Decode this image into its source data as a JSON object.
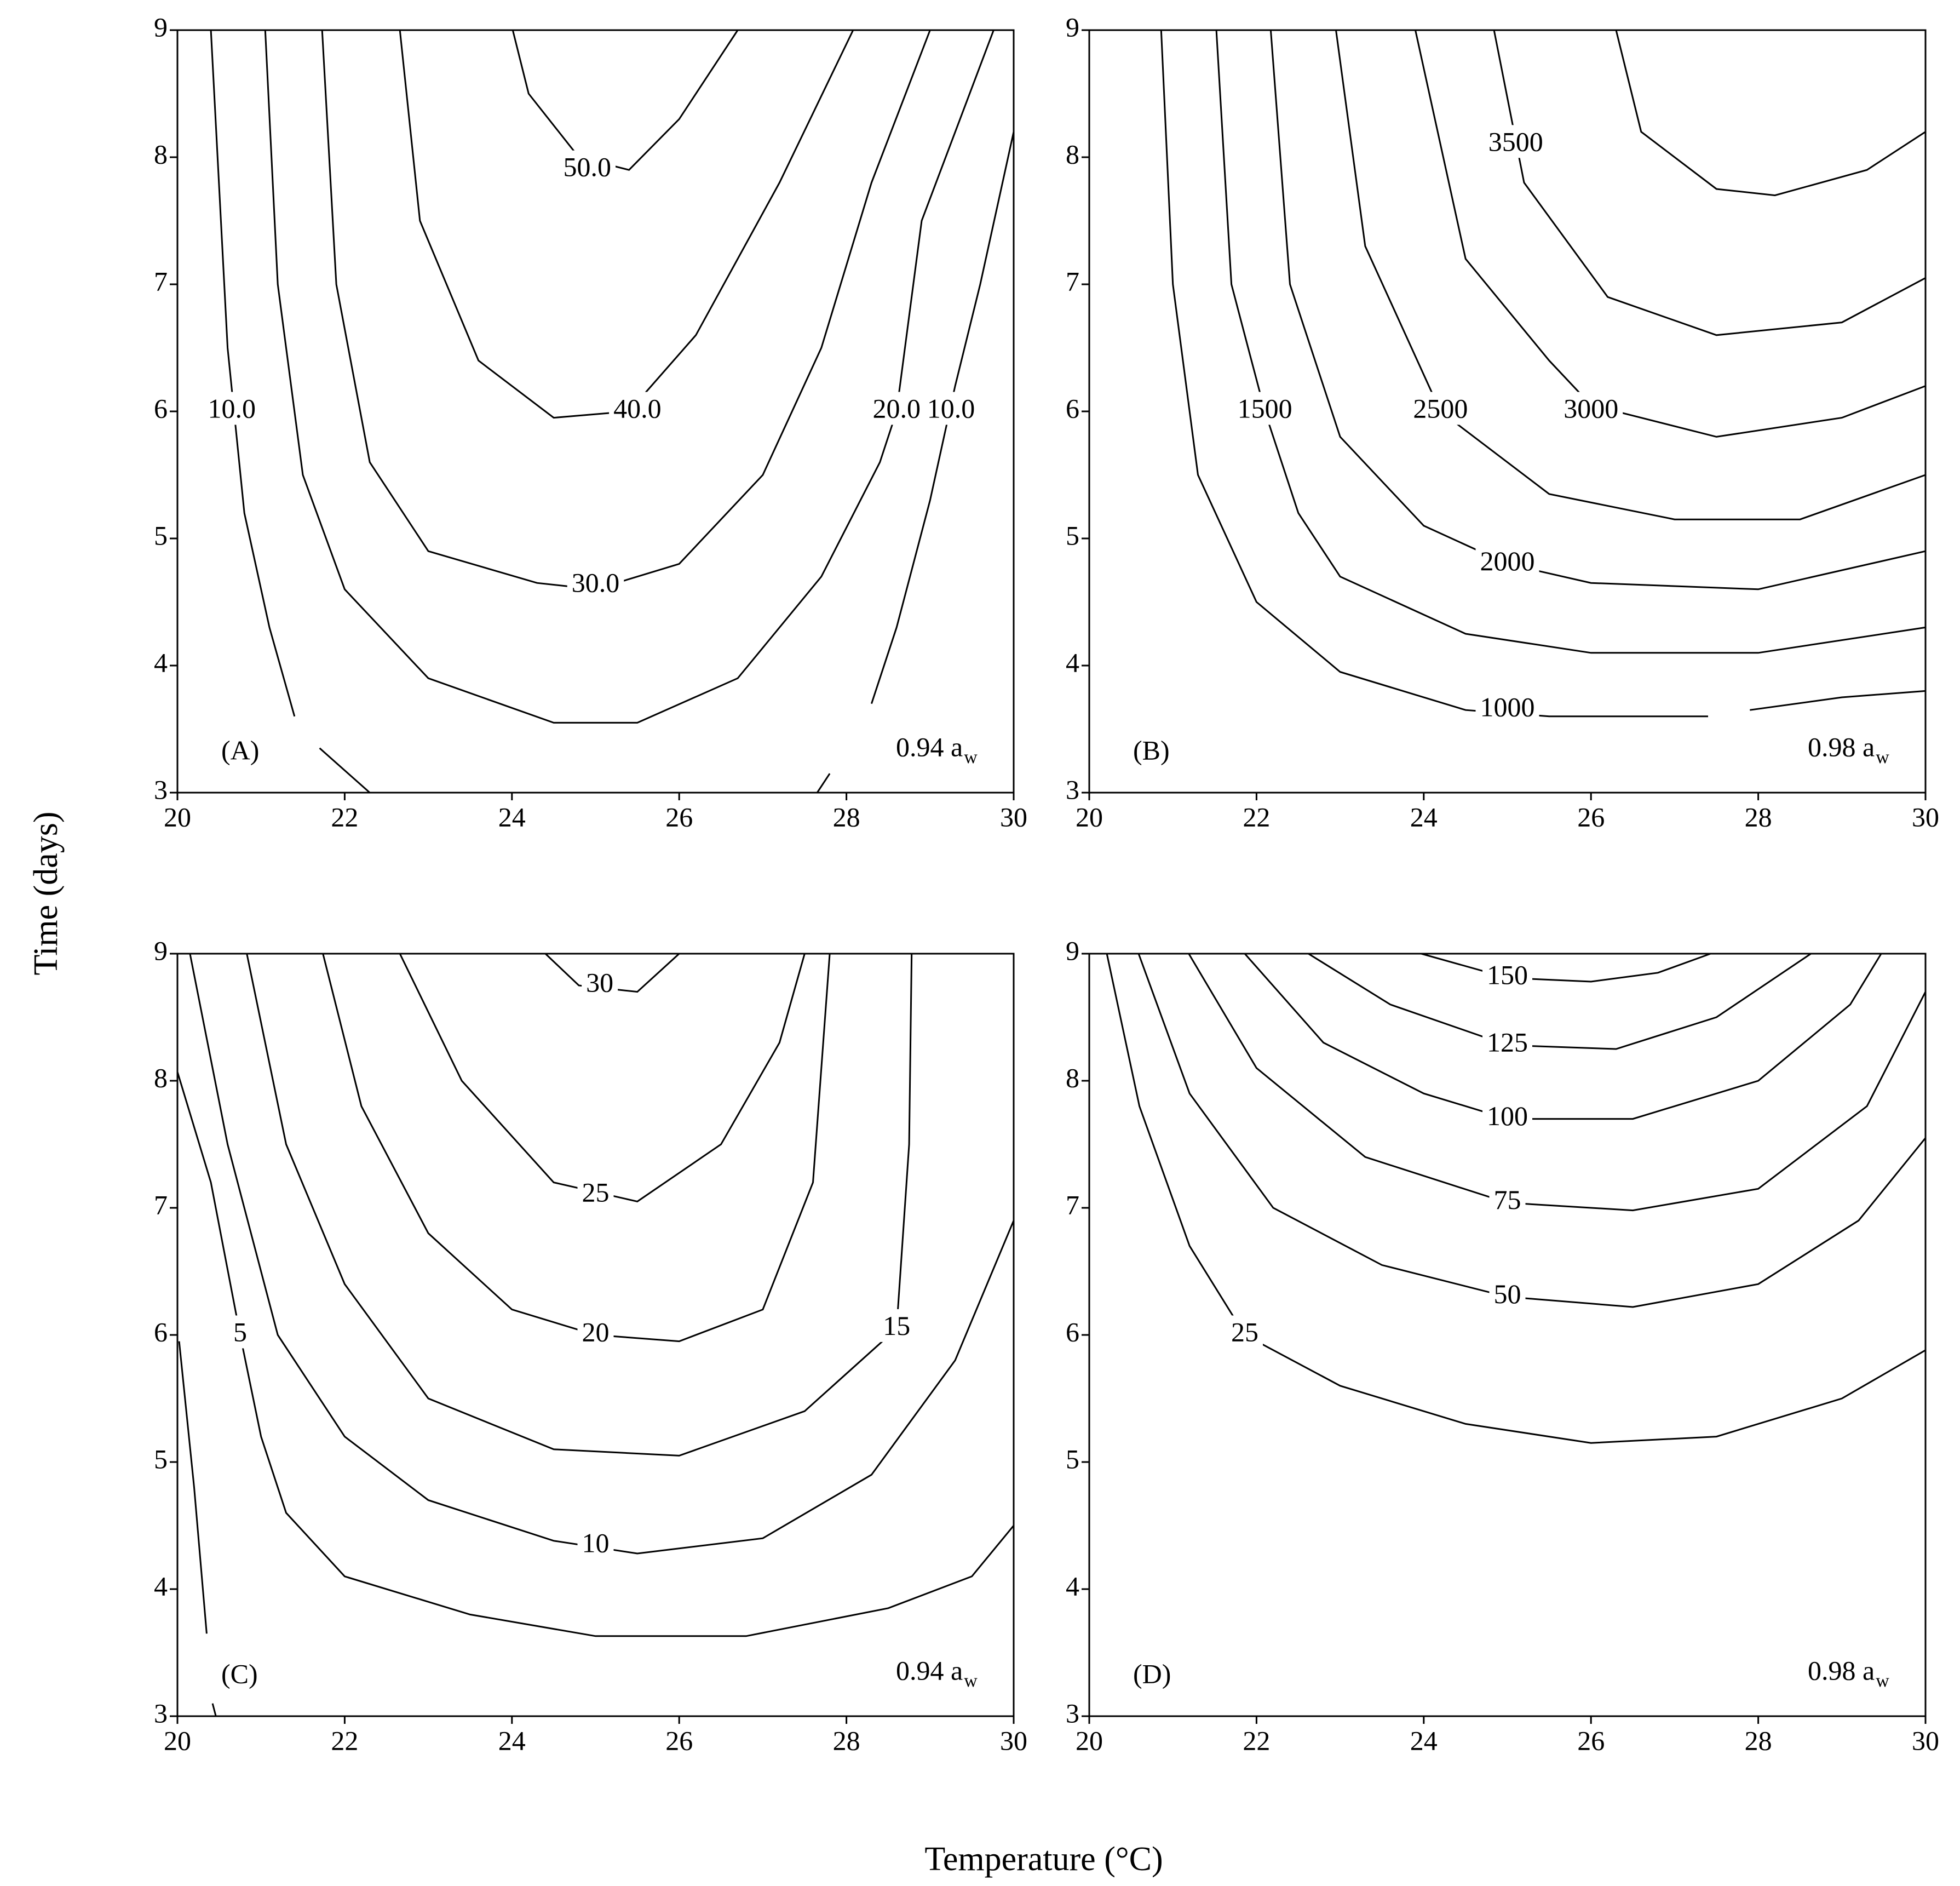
{
  "xlabel": "Temperature (°C)",
  "ylabel": "Time (days)",
  "chart_data": [
    {
      "type": "contour",
      "panel_label": "(A)",
      "aw_text": "0.94 a",
      "aw_subscript": "w",
      "xlim": [
        20,
        30
      ],
      "ylim": [
        3,
        9
      ],
      "xticks": [
        20,
        22,
        24,
        26,
        28,
        30
      ],
      "yticks": [
        3,
        4,
        5,
        6,
        7,
        8,
        9
      ],
      "series": [
        {
          "name": "10.0",
          "x": [
            20.4,
            20.6,
            20.8,
            21.1,
            21.4,
            null,
            21.7,
            22.3,
            null,
            30,
            29.6,
            29.3,
            29.0,
            28.6,
            28.3,
            null,
            27.8,
            27.65
          ],
          "y": [
            9,
            6.5,
            5.2,
            4.3,
            3.6,
            null,
            3.35,
            3,
            null,
            8.2,
            7,
            6.2,
            5.3,
            4.3,
            3.7,
            null,
            3.15,
            3
          ],
          "labels": [
            {
              "x": 20.65,
              "y": 6.0
            },
            {
              "x": 29.25,
              "y": 6.0
            }
          ]
        },
        {
          "name": "20.0",
          "x": [
            21.05,
            21.2,
            21.5,
            22.0,
            23.0,
            24.5,
            25.5,
            26.7,
            27.7,
            28.4,
            28.6,
            28.9,
            29.76
          ],
          "y": [
            9,
            7,
            5.5,
            4.6,
            3.9,
            3.55,
            3.55,
            3.9,
            4.7,
            5.6,
            6.0,
            7.5,
            9
          ],
          "labels": [
            {
              "x": 28.6,
              "y": 6.0
            }
          ]
        },
        {
          "name": "30.0",
          "x": [
            21.73,
            21.9,
            22.3,
            23.0,
            24.3,
            25.0,
            26.0,
            27.0,
            27.7,
            28.3,
            29.0
          ],
          "y": [
            9,
            7,
            5.6,
            4.9,
            4.65,
            4.6,
            4.8,
            5.5,
            6.5,
            7.8,
            9
          ],
          "labels": [
            {
              "x": 25.0,
              "y": 4.63
            }
          ]
        },
        {
          "name": "40.0",
          "x": [
            22.66,
            22.9,
            23.6,
            24.5,
            25.4,
            26.2,
            27.2,
            28.08
          ],
          "y": [
            9,
            7.5,
            6.4,
            5.95,
            6.0,
            6.6,
            7.8,
            9
          ],
          "labels": [
            {
              "x": 25.5,
              "y": 6.0
            }
          ]
        },
        {
          "name": "50.0",
          "x": [
            24.01,
            24.2,
            24.8,
            25.4,
            26.0,
            26.7
          ],
          "y": [
            9,
            8.5,
            8.0,
            7.9,
            8.3,
            9
          ],
          "labels": [
            {
              "x": 24.9,
              "y": 7.9
            }
          ]
        }
      ]
    },
    {
      "type": "contour",
      "panel_label": "(B)",
      "aw_text": "0.98 a",
      "aw_subscript": "w",
      "xlim": [
        20,
        30
      ],
      "ylim": [
        3,
        9
      ],
      "xticks": [
        20,
        22,
        24,
        26,
        28,
        30
      ],
      "yticks": [
        3,
        4,
        5,
        6,
        7,
        8,
        9
      ],
      "series": [
        {
          "name": "1000",
          "x": [
            20.86,
            21.0,
            21.3,
            22.0,
            23.0,
            24.5,
            25.5,
            27.4,
            null,
            27.9,
            29,
            30
          ],
          "y": [
            9,
            7,
            5.5,
            4.5,
            3.95,
            3.65,
            3.6,
            3.6,
            null,
            3.65,
            3.75,
            3.8
          ],
          "labels": [
            {
              "x": 25.0,
              "y": 3.65
            }
          ]
        },
        {
          "name": "1500",
          "x": [
            21.52,
            21.7,
            21.9,
            22.1,
            22.5,
            23.0,
            24.5,
            26,
            28,
            30
          ],
          "y": [
            9,
            7,
            6.5,
            6.0,
            5.2,
            4.7,
            4.25,
            4.1,
            4.1,
            4.3
          ],
          "labels": [
            {
              "x": 22.1,
              "y": 6.0
            }
          ]
        },
        {
          "name": "2000",
          "x": [
            22.17,
            22.4,
            23,
            24,
            25,
            26,
            28,
            30
          ],
          "y": [
            9,
            7,
            5.8,
            5.1,
            4.8,
            4.65,
            4.6,
            4.9
          ],
          "labels": [
            {
              "x": 25.0,
              "y": 4.8
            }
          ]
        },
        {
          "name": "2500",
          "x": [
            22.95,
            23.3,
            24.2,
            25.5,
            27,
            28.5,
            30
          ],
          "y": [
            9,
            7.3,
            6.0,
            5.35,
            5.15,
            5.15,
            5.5
          ],
          "labels": [
            {
              "x": 24.2,
              "y": 6.0
            }
          ]
        },
        {
          "name": "3000",
          "x": [
            23.9,
            24.5,
            25.5,
            26,
            27.5,
            29,
            30
          ],
          "y": [
            9,
            7.2,
            6.4,
            6.05,
            5.8,
            5.95,
            6.2
          ],
          "labels": [
            {
              "x": 26.0,
              "y": 6.0
            }
          ]
        },
        {
          "name": "3500",
          "x": [
            24.84,
            25.2,
            26.2,
            27.5,
            29,
            30
          ],
          "y": [
            9,
            7.8,
            6.9,
            6.6,
            6.7,
            7.05
          ],
          "labels": [
            {
              "x": 25.1,
              "y": 8.1
            }
          ]
        },
        {
          "x": [
            26.3,
            26.6,
            27.5,
            28.2,
            29.3,
            30
          ],
          "y": [
            9,
            8.2,
            7.75,
            7.7,
            7.9,
            8.2
          ]
        }
      ]
    },
    {
      "type": "contour",
      "panel_label": "(C)",
      "aw_text": "0.94 a",
      "aw_subscript": "w",
      "xlim": [
        20,
        30
      ],
      "ylim": [
        3,
        9
      ],
      "xticks": [
        20,
        22,
        24,
        26,
        28,
        30
      ],
      "yticks": [
        3,
        4,
        5,
        6,
        7,
        8,
        9
      ],
      "series": [
        {
          "x": [
            20.02,
            20.2,
            20.35,
            null,
            20.42,
            20.46
          ],
          "y": [
            5.95,
            4.8,
            3.65,
            null,
            3.1,
            3.0
          ]
        },
        {
          "name": "5",
          "x": [
            20.0,
            20.4,
            20.75,
            21.0,
            21.3,
            22.0,
            23.5,
            25,
            26.8,
            28.5,
            29.5,
            30
          ],
          "y": [
            8.07,
            7.2,
            6.0,
            5.2,
            4.6,
            4.1,
            3.8,
            3.63,
            3.63,
            3.85,
            4.1,
            4.5
          ],
          "labels": [
            {
              "x": 20.75,
              "y": 6.0
            }
          ]
        },
        {
          "name": "10",
          "x": [
            20.15,
            20.6,
            21.2,
            22,
            23,
            24.5,
            25.5,
            27,
            28.3,
            29.3,
            30
          ],
          "y": [
            9,
            7.5,
            6.0,
            5.2,
            4.7,
            4.38,
            4.28,
            4.4,
            4.9,
            5.8,
            6.9
          ],
          "labels": [
            {
              "x": 25.0,
              "y": 4.34
            }
          ]
        },
        {
          "name": "15",
          "x": [
            20.83,
            21.3,
            22,
            23,
            24.5,
            26,
            27.5,
            28.6,
            28.75,
            28.78
          ],
          "y": [
            9,
            7.5,
            6.4,
            5.5,
            5.1,
            5.05,
            5.4,
            6.05,
            7.5,
            9
          ],
          "labels": [
            {
              "x": 28.6,
              "y": 6.05
            }
          ]
        },
        {
          "name": "20",
          "x": [
            21.74,
            22.2,
            23,
            24,
            25,
            26,
            27,
            27.6,
            27.8
          ],
          "y": [
            9,
            7.8,
            6.8,
            6.2,
            6.0,
            5.95,
            6.2,
            7.2,
            9
          ],
          "labels": [
            {
              "x": 25.0,
              "y": 6.0
            }
          ]
        },
        {
          "name": "25",
          "x": [
            22.66,
            23.4,
            24.5,
            25.5,
            26.5,
            27.2,
            27.5
          ],
          "y": [
            9,
            8.0,
            7.2,
            7.05,
            7.5,
            8.3,
            9
          ],
          "labels": [
            {
              "x": 25.0,
              "y": 7.1
            }
          ]
        },
        {
          "name": "30",
          "x": [
            24.4,
            24.8,
            25.5,
            26.0
          ],
          "y": [
            9,
            8.75,
            8.7,
            9
          ],
          "labels": [
            {
              "x": 25.05,
              "y": 8.75
            }
          ]
        }
      ]
    },
    {
      "type": "contour",
      "panel_label": "(D)",
      "aw_text": "0.98 a",
      "aw_subscript": "w",
      "xlim": [
        20,
        30
      ],
      "ylim": [
        3,
        9
      ],
      "xticks": [
        20,
        22,
        24,
        26,
        28,
        30
      ],
      "yticks": [
        3,
        4,
        5,
        6,
        7,
        8,
        9
      ],
      "series": [
        {
          "name": "25",
          "x": [
            20.21,
            20.6,
            21.2,
            21.86,
            23,
            24.5,
            26,
            27.5,
            29,
            30
          ],
          "y": [
            9,
            7.8,
            6.7,
            6.0,
            5.6,
            5.3,
            5.15,
            5.2,
            5.5,
            5.88
          ],
          "labels": [
            {
              "x": 21.86,
              "y": 6.0
            }
          ]
        },
        {
          "name": "50",
          "x": [
            20.59,
            21.2,
            22.2,
            23.5,
            25,
            26.5,
            28,
            29.2,
            30
          ],
          "y": [
            9,
            7.9,
            7.0,
            6.55,
            6.3,
            6.22,
            6.4,
            6.9,
            7.55
          ],
          "labels": [
            {
              "x": 25.0,
              "y": 6.3
            }
          ]
        },
        {
          "name": "75",
          "x": [
            21.19,
            22,
            23.3,
            25,
            26.5,
            28,
            29.3,
            30
          ],
          "y": [
            9,
            8.1,
            7.4,
            7.04,
            6.98,
            7.15,
            7.8,
            8.7
          ],
          "labels": [
            {
              "x": 25.0,
              "y": 7.04
            }
          ]
        },
        {
          "name": "100",
          "x": [
            21.86,
            22.8,
            24,
            25,
            26.5,
            28,
            29.1,
            29.47
          ],
          "y": [
            9,
            8.3,
            7.9,
            7.7,
            7.7,
            8.0,
            8.6,
            9
          ],
          "labels": [
            {
              "x": 25.0,
              "y": 7.7
            }
          ]
        },
        {
          "name": "125",
          "x": [
            22.62,
            23.6,
            25,
            26.3,
            27.5,
            28.63
          ],
          "y": [
            9,
            8.6,
            8.28,
            8.25,
            8.5,
            9
          ],
          "labels": [
            {
              "x": 25.0,
              "y": 8.28
            }
          ]
        },
        {
          "name": "150",
          "x": [
            23.97,
            25,
            26,
            26.8,
            27.43
          ],
          "y": [
            9,
            8.81,
            8.78,
            8.85,
            9
          ],
          "labels": [
            {
              "x": 25.0,
              "y": 8.81
            }
          ]
        }
      ]
    }
  ]
}
